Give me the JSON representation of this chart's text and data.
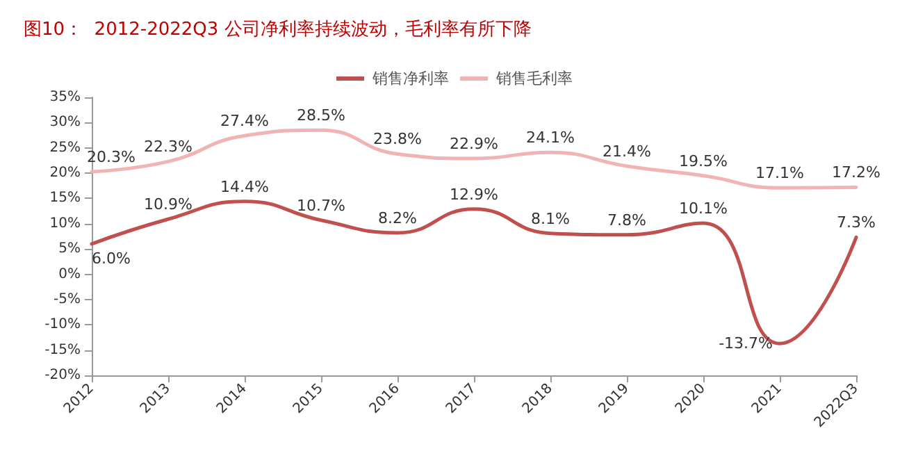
{
  "chart_data": {
    "type": "line",
    "title": "图10：  2012-2022Q3 公司净利率持续波动，毛利率有所下降",
    "categories": [
      "2012",
      "2013",
      "2014",
      "2015",
      "2016",
      "2017",
      "2018",
      "2019",
      "2020",
      "2021",
      "2022Q3"
    ],
    "series": [
      {
        "name": "销售净利率",
        "color": "#c0504d",
        "values": [
          6.0,
          10.9,
          14.4,
          10.7,
          8.2,
          12.9,
          8.1,
          7.8,
          10.1,
          -13.7,
          7.3
        ],
        "value_labels": [
          "6.0%",
          "10.9%",
          "14.4%",
          "10.7%",
          "8.2%",
          "12.9%",
          "8.1%",
          "7.8%",
          "10.1%",
          "-13.7%",
          "7.3%"
        ]
      },
      {
        "name": "销售毛利率",
        "color": "#f0b4b4",
        "values": [
          20.3,
          22.3,
          27.4,
          28.5,
          23.8,
          22.9,
          24.1,
          21.4,
          19.5,
          17.1,
          17.2
        ],
        "value_labels": [
          "20.3%",
          "22.3%",
          "27.4%",
          "28.5%",
          "23.8%",
          "22.9%",
          "24.1%",
          "21.4%",
          "19.5%",
          "17.1%",
          "17.2%"
        ]
      }
    ],
    "ylim": [
      -20,
      35
    ],
    "yticks": [
      {
        "value": -20,
        "label": "-20%"
      },
      {
        "value": -15,
        "label": "-15%"
      },
      {
        "value": -10,
        "label": "-10%"
      },
      {
        "value": -5,
        "label": "-5%"
      },
      {
        "value": 0,
        "label": "0%"
      },
      {
        "value": 5,
        "label": "5%"
      },
      {
        "value": 10,
        "label": "10%"
      },
      {
        "value": 15,
        "label": "15%"
      },
      {
        "value": 20,
        "label": "20%"
      },
      {
        "value": 25,
        "label": "25%"
      },
      {
        "value": 30,
        "label": "30%"
      },
      {
        "value": 35,
        "label": "35%"
      }
    ],
    "legend": "top",
    "grid": false,
    "marker": "none",
    "line_style": "solid"
  }
}
